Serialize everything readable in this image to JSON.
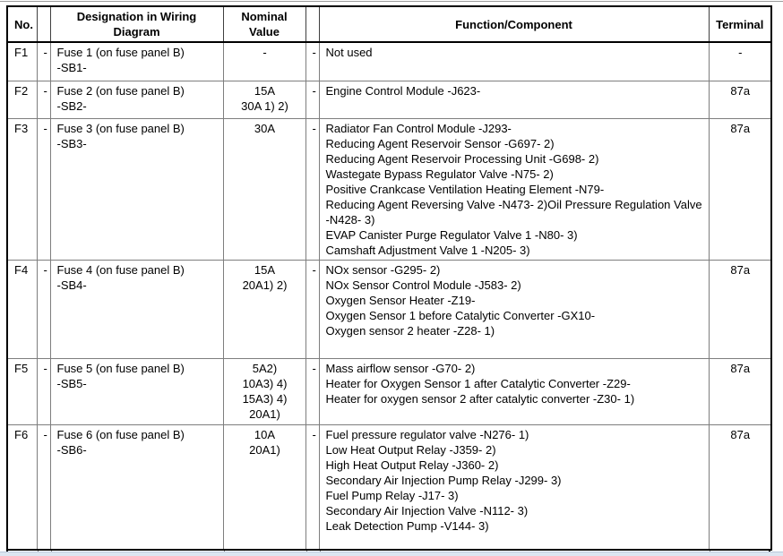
{
  "table": {
    "headers": {
      "no": "No.",
      "designation": "Designation in Wiring Diagram",
      "nominal": "Nominal Value",
      "function": "Function/Component",
      "terminal": "Terminal"
    },
    "rows": [
      {
        "no": "F1",
        "dash1": "-",
        "designation": [
          "Fuse 1 (on fuse panel B)",
          "-SB1-"
        ],
        "nominal": [
          "-"
        ],
        "dash2": "-",
        "functions": [
          "Not used"
        ],
        "terminal": "-"
      },
      {
        "no": "F2",
        "dash1": "-",
        "designation": [
          "Fuse 2 (on fuse panel B)",
          "-SB2-"
        ],
        "nominal": [
          "15A",
          "30A 1) 2)"
        ],
        "dash2": "-",
        "functions": [
          "Engine Control Module -J623-"
        ],
        "terminal": "87a"
      },
      {
        "no": "F3",
        "dash1": "-",
        "designation": [
          "Fuse 3 (on fuse panel B)",
          "-SB3-"
        ],
        "nominal": [
          "30A"
        ],
        "dash2": "-",
        "functions": [
          "Radiator Fan Control Module -J293-",
          "Reducing Agent Reservoir Sensor -G697- 2)",
          "Reducing Agent Reservoir Processing Unit -G698- 2)",
          "Wastegate Bypass Regulator Valve -N75- 2)",
          "Positive Crankcase Ventilation Heating Element -N79-",
          "Reducing Agent Reversing Valve -N473- 2)Oil Pressure Regulation Valve -N428- 3)",
          "EVAP Canister Purge Regulator Valve 1 -N80- 3)",
          "Camshaft Adjustment Valve 1 -N205- 3)"
        ],
        "terminal": "87a"
      },
      {
        "no": "F4",
        "dash1": "-",
        "designation": [
          "Fuse 4 (on fuse panel B)",
          "-SB4-"
        ],
        "nominal": [
          "15A",
          "20A1) 2)"
        ],
        "dash2": "-",
        "functions": [
          "NOx sensor -G295- 2)",
          "NOx Sensor Control Module -J583- 2)",
          "Oxygen Sensor Heater -Z19-",
          "Oxygen Sensor 1 before Catalytic Converter -GX10-",
          "Oxygen sensor 2 heater -Z28- 1)"
        ],
        "terminal": "87a"
      },
      {
        "no": "F5",
        "dash1": "-",
        "designation": [
          "Fuse 5 (on fuse panel B)",
          "-SB5-"
        ],
        "nominal": [
          "5A2)",
          "10A3) 4)",
          "15A3) 4)",
          "20A1)"
        ],
        "dash2": "-",
        "functions": [
          "Mass airflow sensor -G70- 2)",
          "Heater for Oxygen Sensor 1 after Catalytic Converter -Z29-",
          "Heater for oxygen sensor 2 after catalytic converter -Z30- 1)"
        ],
        "terminal": "87a"
      },
      {
        "no": "F6",
        "dash1": "-",
        "designation": [
          "Fuse 6 (on fuse panel B)",
          "-SB6-"
        ],
        "nominal": [
          "10A",
          "20A1)"
        ],
        "dash2": "-",
        "functions": [
          "Fuel pressure regulator valve -N276- 1)",
          "Low Heat Output Relay -J359- 2)",
          "High Heat Output Relay -J360- 2)",
          "Secondary Air Injection Pump Relay -J299- 3)",
          "Fuel Pump Relay -J17- 3)",
          "Secondary Air Injection Valve -N112- 3)",
          "Leak Detection Pump -V144- 3)"
        ],
        "terminal": "87a"
      }
    ]
  }
}
